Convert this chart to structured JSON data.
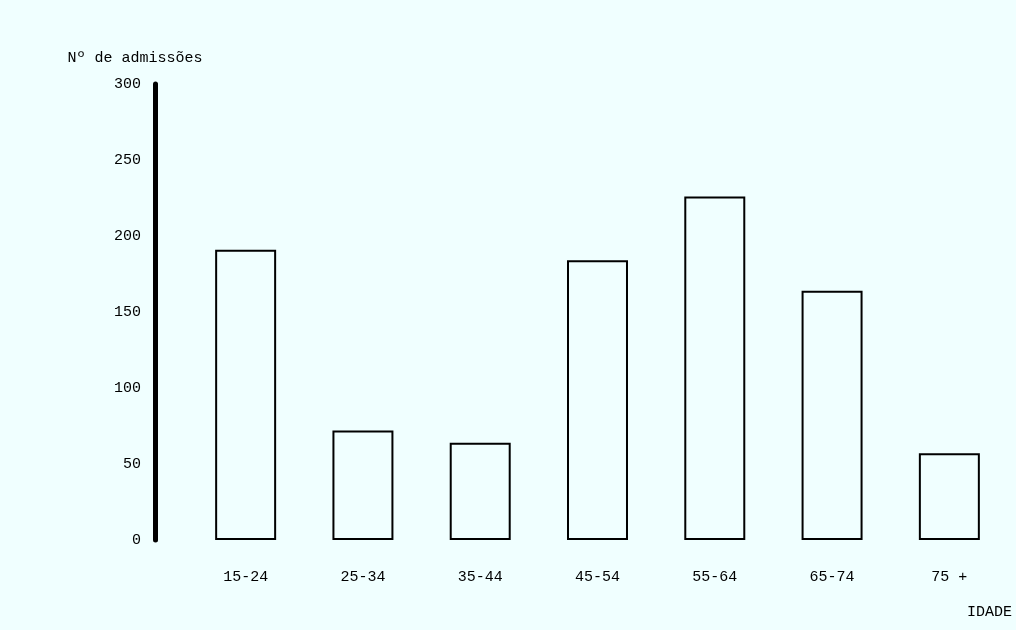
{
  "chart_data": {
    "type": "bar",
    "ylabel": "Nº de admissões",
    "xlabel": "IDADE",
    "categories": [
      "15-24",
      "25-34",
      "35-44",
      "45-54",
      "55-64",
      "65-74",
      "75 +"
    ],
    "values": [
      191,
      72,
      64,
      184,
      226,
      164,
      57
    ],
    "color": "#000000",
    "ylim": [
      0,
      300
    ],
    "yticks": [
      0,
      50,
      100,
      150,
      200,
      250,
      300
    ],
    "grid": false
  }
}
